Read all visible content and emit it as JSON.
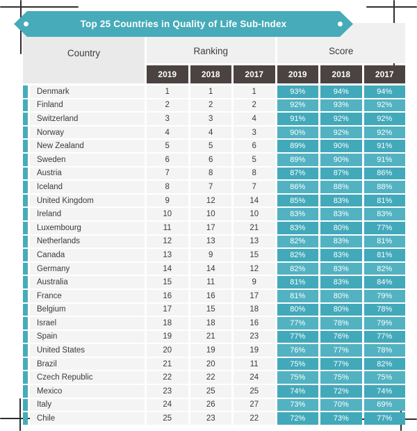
{
  "colors": {
    "accent_teal": "#47abb9",
    "score_cell_odd": "#42a9ba",
    "score_cell_even": "#52b2c1",
    "year_header_bg": "#4b4242",
    "header_bg": "#eaeaea",
    "row_bg": "#f4f4f4",
    "frame_mark": "#2d2d2d"
  },
  "chart_data": {
    "type": "table",
    "title": "Top 25 Countries in Quality of Life Sub-Index",
    "column_groups": [
      "Country",
      "Ranking",
      "Score"
    ],
    "year_columns": [
      "2019",
      "2018",
      "2017"
    ],
    "rows": [
      {
        "country": "Denmark",
        "rank_2019": 1,
        "rank_2018": 1,
        "rank_2017": 1,
        "score_2019": "93%",
        "score_2018": "94%",
        "score_2017": "94%"
      },
      {
        "country": "Finland",
        "rank_2019": 2,
        "rank_2018": 2,
        "rank_2017": 2,
        "score_2019": "92%",
        "score_2018": "93%",
        "score_2017": "92%"
      },
      {
        "country": "Switzerland",
        "rank_2019": 3,
        "rank_2018": 3,
        "rank_2017": 4,
        "score_2019": "91%",
        "score_2018": "92%",
        "score_2017": "92%"
      },
      {
        "country": "Norway",
        "rank_2019": 4,
        "rank_2018": 4,
        "rank_2017": 3,
        "score_2019": "90%",
        "score_2018": "92%",
        "score_2017": "92%"
      },
      {
        "country": "New Zealand",
        "rank_2019": 5,
        "rank_2018": 5,
        "rank_2017": 6,
        "score_2019": "89%",
        "score_2018": "90%",
        "score_2017": "91%"
      },
      {
        "country": "Sweden",
        "rank_2019": 6,
        "rank_2018": 6,
        "rank_2017": 5,
        "score_2019": "89%",
        "score_2018": "90%",
        "score_2017": "91%"
      },
      {
        "country": "Austria",
        "rank_2019": 7,
        "rank_2018": 8,
        "rank_2017": 8,
        "score_2019": "87%",
        "score_2018": "87%",
        "score_2017": "86%"
      },
      {
        "country": "Iceland",
        "rank_2019": 8,
        "rank_2018": 7,
        "rank_2017": 7,
        "score_2019": "86%",
        "score_2018": "88%",
        "score_2017": "88%"
      },
      {
        "country": "United Kingdom",
        "rank_2019": 9,
        "rank_2018": 12,
        "rank_2017": 14,
        "score_2019": "85%",
        "score_2018": "83%",
        "score_2017": "81%"
      },
      {
        "country": "Ireland",
        "rank_2019": 10,
        "rank_2018": 10,
        "rank_2017": 10,
        "score_2019": "83%",
        "score_2018": "83%",
        "score_2017": "83%"
      },
      {
        "country": "Luxembourg",
        "rank_2019": 11,
        "rank_2018": 17,
        "rank_2017": 21,
        "score_2019": "83%",
        "score_2018": "80%",
        "score_2017": "77%"
      },
      {
        "country": "Netherlands",
        "rank_2019": 12,
        "rank_2018": 13,
        "rank_2017": 13,
        "score_2019": "82%",
        "score_2018": "83%",
        "score_2017": "81%"
      },
      {
        "country": "Canada",
        "rank_2019": 13,
        "rank_2018": 9,
        "rank_2017": 15,
        "score_2019": "82%",
        "score_2018": "83%",
        "score_2017": "81%"
      },
      {
        "country": "Germany",
        "rank_2019": 14,
        "rank_2018": 14,
        "rank_2017": 12,
        "score_2019": "82%",
        "score_2018": "83%",
        "score_2017": "82%"
      },
      {
        "country": "Australia",
        "rank_2019": 15,
        "rank_2018": 11,
        "rank_2017": 9,
        "score_2019": "81%",
        "score_2018": "83%",
        "score_2017": "84%"
      },
      {
        "country": "France",
        "rank_2019": 16,
        "rank_2018": 16,
        "rank_2017": 17,
        "score_2019": "81%",
        "score_2018": "80%",
        "score_2017": "79%"
      },
      {
        "country": "Belgium",
        "rank_2019": 17,
        "rank_2018": 15,
        "rank_2017": 18,
        "score_2019": "80%",
        "score_2018": "80%",
        "score_2017": "78%"
      },
      {
        "country": "Israel",
        "rank_2019": 18,
        "rank_2018": 18,
        "rank_2017": 16,
        "score_2019": "77%",
        "score_2018": "78%",
        "score_2017": "79%"
      },
      {
        "country": "Spain",
        "rank_2019": 19,
        "rank_2018": 21,
        "rank_2017": 23,
        "score_2019": "77%",
        "score_2018": "76%",
        "score_2017": "77%"
      },
      {
        "country": "United States",
        "rank_2019": 20,
        "rank_2018": 19,
        "rank_2017": 19,
        "score_2019": "76%",
        "score_2018": "77%",
        "score_2017": "78%"
      },
      {
        "country": "Brazil",
        "rank_2019": 21,
        "rank_2018": 20,
        "rank_2017": 11,
        "score_2019": "75%",
        "score_2018": "77%",
        "score_2017": "82%"
      },
      {
        "country": "Czech Republic",
        "rank_2019": 22,
        "rank_2018": 22,
        "rank_2017": 24,
        "score_2019": "75%",
        "score_2018": "75%",
        "score_2017": "75%"
      },
      {
        "country": "Mexico",
        "rank_2019": 23,
        "rank_2018": 25,
        "rank_2017": 25,
        "score_2019": "74%",
        "score_2018": "72%",
        "score_2017": "74%"
      },
      {
        "country": "Italy",
        "rank_2019": 24,
        "rank_2018": 26,
        "rank_2017": 27,
        "score_2019": "73%",
        "score_2018": "70%",
        "score_2017": "69%"
      },
      {
        "country": "Chile",
        "rank_2019": 25,
        "rank_2018": 23,
        "rank_2017": 22,
        "score_2019": "72%",
        "score_2018": "73%",
        "score_2017": "77%"
      }
    ]
  }
}
